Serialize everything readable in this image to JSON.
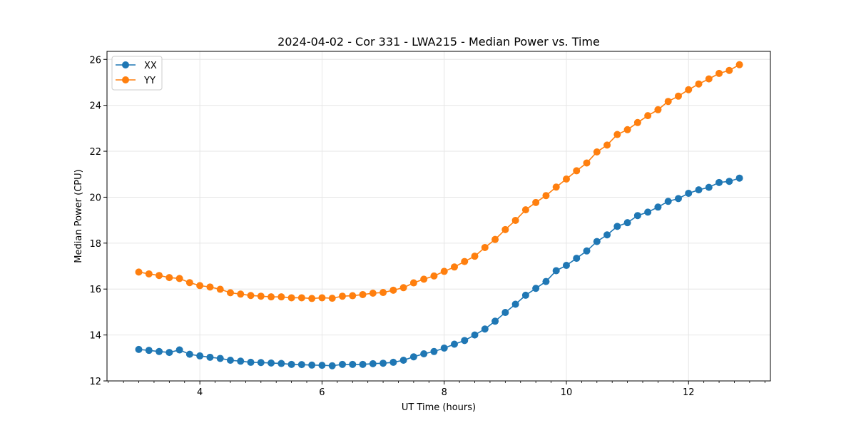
{
  "chart_data": {
    "type": "line",
    "title": "2024-04-02 - Cor 331 - LWA215 - Median Power vs. Time",
    "xlabel": "UT Time (hours)",
    "ylabel": "Median Power (CPU)",
    "xlim": [
      2.48,
      13.34
    ],
    "ylim": [
      12,
      26.35
    ],
    "xticks": [
      4,
      6,
      8,
      10,
      12
    ],
    "xtick_labels": [
      "4",
      "6",
      "8",
      "10",
      "12"
    ],
    "xminor_step": 0.25,
    "yticks": [
      12,
      14,
      16,
      18,
      20,
      22,
      24,
      26
    ],
    "ytick_labels": [
      "12",
      "14",
      "16",
      "18",
      "20",
      "22",
      "24",
      "26"
    ],
    "grid": true,
    "legend_position": "top-left",
    "x": [
      3.0,
      3.1667,
      3.3333,
      3.5,
      3.6667,
      3.8333,
      4.0,
      4.1667,
      4.3333,
      4.5,
      4.6667,
      4.8333,
      5.0,
      5.1667,
      5.3333,
      5.5,
      5.6667,
      5.8333,
      6.0,
      6.1667,
      6.3333,
      6.5,
      6.6667,
      6.8333,
      7.0,
      7.1667,
      7.3333,
      7.5,
      7.6667,
      7.8333,
      8.0,
      8.1667,
      8.3333,
      8.5,
      8.6667,
      8.8333,
      9.0,
      9.1667,
      9.3333,
      9.5,
      9.6667,
      9.8333,
      10.0,
      10.1667,
      10.3333,
      10.5,
      10.6667,
      10.8333,
      11.0,
      11.1667,
      11.3333,
      11.5,
      11.6667,
      11.8333,
      12.0,
      12.1667,
      12.3333,
      12.5,
      12.6667,
      12.8333
    ],
    "series": [
      {
        "name": "XX",
        "color": "#1f77b4",
        "values": [
          13.37,
          13.33,
          13.28,
          13.24,
          13.35,
          13.16,
          13.09,
          13.03,
          12.98,
          12.9,
          12.86,
          12.81,
          12.8,
          12.78,
          12.76,
          12.72,
          12.71,
          12.69,
          12.68,
          12.66,
          12.72,
          12.72,
          12.72,
          12.75,
          12.77,
          12.81,
          12.9,
          13.05,
          13.18,
          13.28,
          13.43,
          13.6,
          13.76,
          14.0,
          14.26,
          14.6,
          14.98,
          15.34,
          15.73,
          16.03,
          16.33,
          16.8,
          17.03,
          17.34,
          17.66,
          18.07,
          18.36,
          18.73,
          18.89,
          19.2,
          19.35,
          19.57,
          19.82,
          19.94,
          20.17,
          20.32,
          20.43,
          20.64,
          20.69,
          20.83
        ]
      },
      {
        "name": "YY",
        "color": "#ff7f0e",
        "values": [
          16.74,
          16.66,
          16.59,
          16.5,
          16.46,
          16.28,
          16.15,
          16.09,
          15.99,
          15.84,
          15.78,
          15.72,
          15.69,
          15.66,
          15.66,
          15.62,
          15.62,
          15.59,
          15.62,
          15.6,
          15.69,
          15.71,
          15.76,
          15.82,
          15.85,
          15.95,
          16.06,
          16.27,
          16.43,
          16.57,
          16.77,
          16.96,
          17.2,
          17.43,
          17.81,
          18.16,
          18.59,
          18.99,
          19.45,
          19.77,
          20.07,
          20.44,
          20.79,
          21.15,
          21.49,
          21.97,
          22.27,
          22.73,
          22.94,
          23.25,
          23.55,
          23.81,
          24.17,
          24.4,
          24.68,
          24.93,
          25.15,
          25.39,
          25.52,
          25.77
        ]
      }
    ]
  }
}
